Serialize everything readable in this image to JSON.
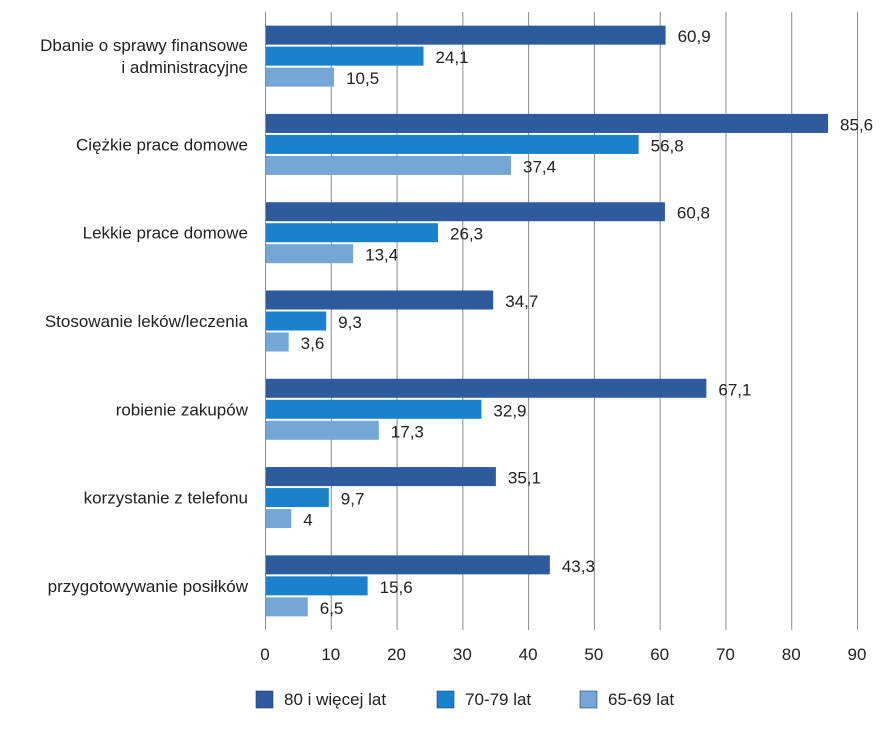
{
  "chart_data": {
    "type": "bar",
    "orientation": "horizontal",
    "categories": [
      "Dbanie o sprawy finansowe i administracyjne",
      "Ciężkie prace domowe",
      "Lekkie prace domowe",
      "Stosowanie leków/leczenia",
      "robienie zakupów",
      "korzystanie z telefonu",
      "przygotowywanie posiłków"
    ],
    "category_lines": [
      [
        "Dbanie o sprawy finansowe",
        "i administracyjne"
      ],
      [
        "Ciężkie prace domowe"
      ],
      [
        "Lekkie prace domowe"
      ],
      [
        "Stosowanie leków/leczenia"
      ],
      [
        "robienie zakupów"
      ],
      [
        "korzystanie z telefonu"
      ],
      [
        "przygotowywanie posiłków"
      ]
    ],
    "series": [
      {
        "name": "80 i więcej lat",
        "color": "#2e5b9e",
        "values": [
          60.9,
          85.6,
          60.8,
          34.7,
          67.1,
          35.1,
          43.3
        ],
        "labels": [
          "60,9",
          "85,6",
          "60,8",
          "34,7",
          "67,1",
          "35,1",
          "43,3"
        ]
      },
      {
        "name": "70-79 lat",
        "color": "#1a82cc",
        "values": [
          24.1,
          56.8,
          26.3,
          9.3,
          32.9,
          9.7,
          15.6
        ],
        "labels": [
          "24,1",
          "56,8",
          "26,3",
          "9,3",
          "32,9",
          "9,7",
          "15,6"
        ]
      },
      {
        "name": "65-69 lat",
        "color": "#74a6d6",
        "values": [
          10.5,
          37.4,
          13.4,
          3.6,
          17.3,
          4,
          6.5
        ],
        "labels": [
          "10,5",
          "37,4",
          "13,4",
          "3,6",
          "17,3",
          "4",
          "6,5"
        ]
      }
    ],
    "xlim": [
      0,
      90
    ],
    "x_ticks": [
      0,
      10,
      20,
      30,
      40,
      50,
      60,
      70,
      80,
      90
    ],
    "x_tick_labels": [
      "0",
      "10",
      "20",
      "30",
      "40",
      "50",
      "60",
      "70",
      "80",
      "90"
    ],
    "grid": true,
    "legend_position": "bottom",
    "title": "",
    "xlabel": "",
    "ylabel": ""
  }
}
